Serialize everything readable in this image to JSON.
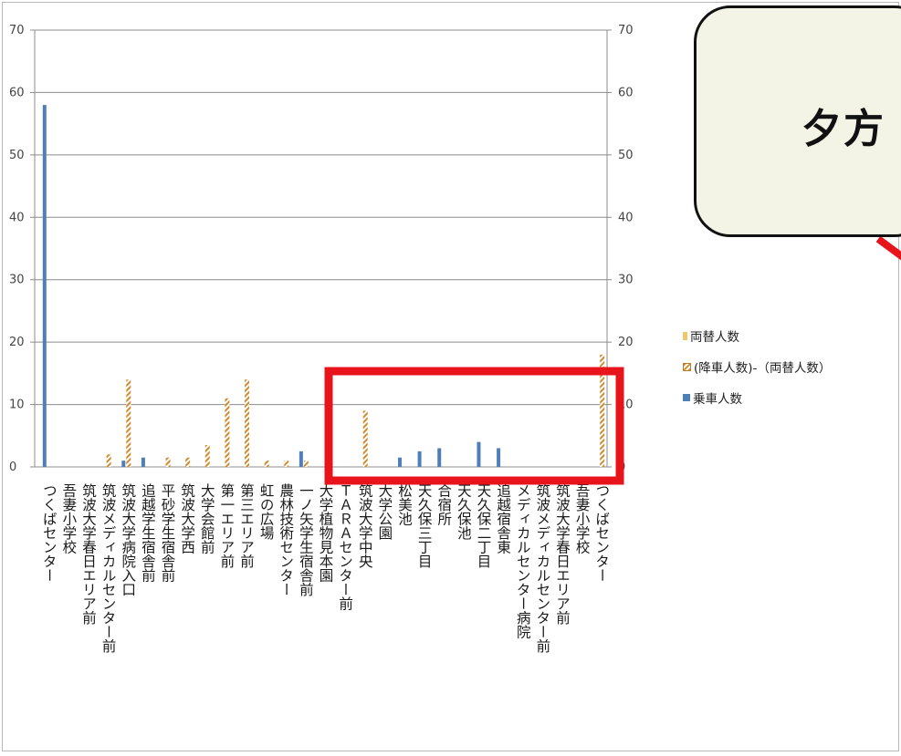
{
  "callout": {
    "text": "夕方"
  },
  "legend": {
    "swap": "両替人数",
    "alight_minus_swap": "(降車人数)-（両替人数）",
    "board": "乗車人数"
  },
  "colors": {
    "board": "#4f7fb8",
    "alight": "#d08a2c",
    "swap": "#f0c76b",
    "highlight": "#e8141c",
    "arrow": "#e8141c",
    "grid": "#8c8c8c"
  },
  "chart_data": {
    "type": "bar",
    "ylim": [
      0,
      70
    ],
    "yticks": [
      0,
      10,
      20,
      30,
      40,
      50,
      60,
      70
    ],
    "grid": true,
    "legend_position": "right",
    "categories": [
      "つくばセンター",
      "吾妻小学校",
      "筑波大学春日エリア前",
      "筑波メディカルセンター前",
      "筑波大学病院入口",
      "追越学生宿舎前",
      "平砂学生宿舎前",
      "筑波大学西",
      "大学会館前",
      "第一エリア前",
      "第三エリア前",
      "虹の広場",
      "農林技術センター",
      "一ノ矢学生宿舎前",
      "大学植物見本園",
      "ＴＡＲＡセンター前",
      "筑波大学中央",
      "大学公園",
      "松美池",
      "天久保三丁目",
      "合宿所",
      "天久保池",
      "天久保二丁目",
      "追越宿舎東",
      "メディカルセンター病院",
      "筑波メディカルセンター前",
      "筑波大学春日エリア前",
      "吾妻小学校",
      "つくばセンター"
    ],
    "series": [
      {
        "name": "乗車人数",
        "values": [
          58,
          0,
          0,
          0,
          1,
          1.5,
          0,
          0,
          0,
          0,
          0,
          0,
          0,
          2.5,
          0,
          0,
          0,
          0,
          1.5,
          2.5,
          3,
          0,
          4,
          3,
          0,
          0,
          0,
          0,
          0
        ]
      },
      {
        "name": "(降車人数)-（両替人数）",
        "values": [
          0,
          0,
          0,
          2,
          14,
          0,
          1.5,
          1.5,
          3.5,
          11,
          14,
          1,
          1,
          1,
          0,
          0,
          9,
          0,
          0,
          0,
          0,
          0,
          0,
          0,
          0,
          0,
          0,
          0,
          18
        ]
      },
      {
        "name": "両替人数",
        "values": [
          0,
          0,
          0,
          0,
          0,
          0,
          0,
          0,
          0,
          0,
          0,
          0,
          0,
          0,
          0,
          0,
          0,
          0,
          0,
          0,
          0,
          0,
          0,
          0,
          0,
          0,
          0,
          0,
          0
        ]
      }
    ]
  }
}
